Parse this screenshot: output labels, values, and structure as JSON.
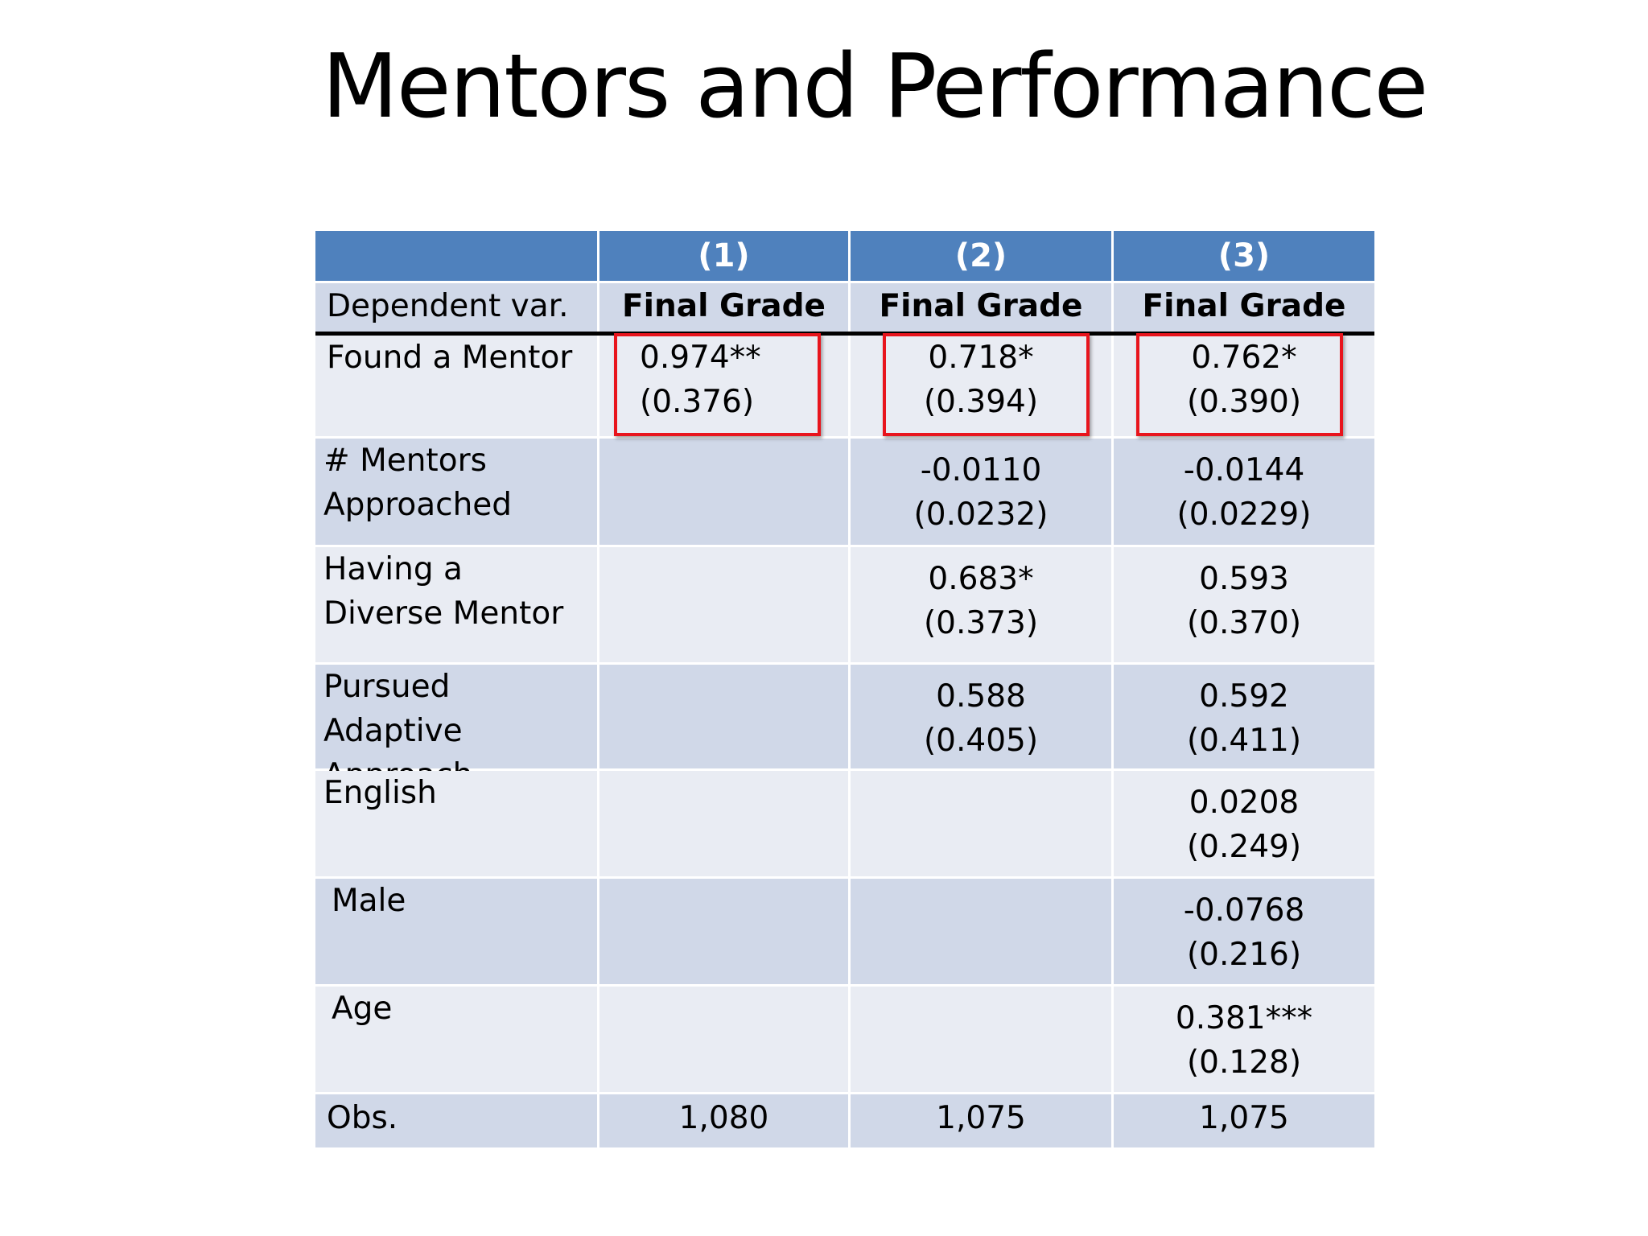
{
  "title": "Mentors and Performance",
  "table": {
    "columns": [
      "",
      "(1)",
      "(2)",
      "(3)"
    ],
    "dependent_var": {
      "label": "Dependent var.",
      "values": [
        "Final Grade",
        "Final Grade",
        "Final Grade"
      ]
    },
    "rows": [
      {
        "label": "Found a Mentor",
        "cells": [
          {
            "coef": "0.974**",
            "se": "(0.376)"
          },
          {
            "coef": "0.718*",
            "se": "(0.394)"
          },
          {
            "coef": "0.762*",
            "se": "(0.390)"
          }
        ]
      },
      {
        "label": "# Mentors Approached",
        "cells": [
          {
            "coef": "",
            "se": ""
          },
          {
            "coef": "-0.0110",
            "se": "(0.0232)"
          },
          {
            "coef": "-0.0144",
            "se": "(0.0229)"
          }
        ]
      },
      {
        "label": "Having a Diverse Mentor",
        "cells": [
          {
            "coef": "",
            "se": ""
          },
          {
            "coef": "0.683*",
            "se": "(0.373)"
          },
          {
            "coef": "0.593",
            "se": "(0.370)"
          }
        ]
      },
      {
        "label": "Pursued Adaptive Approach",
        "cells": [
          {
            "coef": "",
            "se": ""
          },
          {
            "coef": "0.588",
            "se": "(0.405)"
          },
          {
            "coef": "0.592",
            "se": "(0.411)"
          }
        ]
      },
      {
        "label": "English",
        "cells": [
          {
            "coef": "",
            "se": ""
          },
          {
            "coef": "",
            "se": ""
          },
          {
            "coef": "0.0208",
            "se": "(0.249)"
          }
        ]
      },
      {
        "label": "Male",
        "cells": [
          {
            "coef": "",
            "se": ""
          },
          {
            "coef": "",
            "se": ""
          },
          {
            "coef": "-0.0768",
            "se": "(0.216)"
          }
        ]
      },
      {
        "label": "Age",
        "cells": [
          {
            "coef": "",
            "se": ""
          },
          {
            "coef": "",
            "se": ""
          },
          {
            "coef": "0.381***",
            "se": "(0.128)"
          }
        ]
      }
    ],
    "obs": {
      "label": "Obs.",
      "values": [
        "1,080",
        "1,075",
        "1,075"
      ]
    }
  },
  "colors": {
    "header": "#4f81bd",
    "dark_row": "#d0d8e8",
    "light_row": "#e9ecf3",
    "highlight": "#e8141c"
  }
}
